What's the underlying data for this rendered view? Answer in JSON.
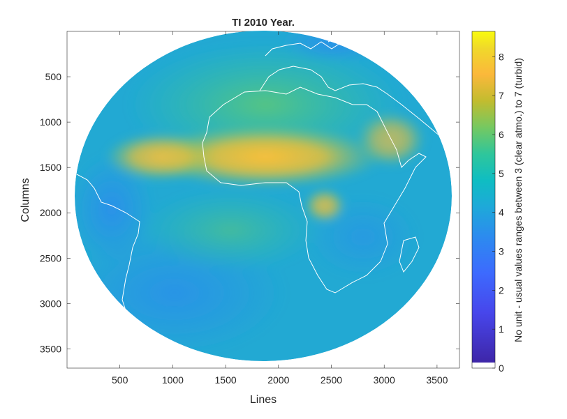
{
  "chart_data": {
    "type": "heatmap",
    "title": "TI 2010 Year.",
    "xlabel": "Lines",
    "ylabel": "Columns",
    "xlim": [
      0,
      3712
    ],
    "ylim": [
      0,
      3712
    ],
    "y_reversed": true,
    "xticks": [
      500,
      1000,
      1500,
      2000,
      2500,
      3000,
      3500
    ],
    "yticks": [
      500,
      1000,
      1500,
      2000,
      2500,
      3000,
      3500
    ],
    "colorbar": {
      "label": "No unit - usual values ranges between 3 (clear atmo.) to 7 (turbid)",
      "range": [
        0,
        8.65
      ],
      "ticks": [
        0,
        1,
        2,
        3,
        4,
        5,
        6,
        7,
        8
      ],
      "colormap": "parula"
    },
    "regions": [
      {
        "name": "Atlantic ocean",
        "approx_value": 3.5
      },
      {
        "name": "Sahara / Sahel dust band",
        "approx_value": 7.2
      },
      {
        "name": "Tropical Atlantic dust plume",
        "approx_value": 6.5
      },
      {
        "name": "Southern Africa",
        "approx_value": 4.0
      },
      {
        "name": "Europe",
        "approx_value": 4.0
      }
    ]
  }
}
